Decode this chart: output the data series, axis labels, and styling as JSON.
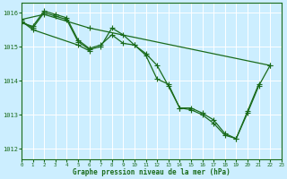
{
  "bg_color": "#cceeff",
  "grid_color": "#ffffff",
  "line_color": "#1a6b1a",
  "xlabel": "Graphe pression niveau de la mer (hPa)",
  "xlim": [
    0,
    23
  ],
  "ylim": [
    1011.7,
    1016.3
  ],
  "yticks": [
    1012,
    1013,
    1014,
    1015,
    1016
  ],
  "xticks": [
    0,
    1,
    2,
    3,
    4,
    5,
    6,
    7,
    8,
    9,
    10,
    11,
    12,
    13,
    14,
    15,
    16,
    17,
    18,
    19,
    20,
    21,
    22,
    23
  ],
  "lines": [
    {
      "x": [
        0,
        2,
        6,
        22
      ],
      "y": [
        1015.8,
        1015.95,
        1015.55,
        1014.45
      ]
    },
    {
      "x": [
        0,
        1,
        2,
        3,
        4,
        5,
        6,
        7,
        8,
        9,
        10,
        11,
        12,
        13,
        14,
        15,
        16,
        17,
        18,
        19,
        20,
        21
      ],
      "y": [
        1015.7,
        1015.6,
        1016.05,
        1015.95,
        1015.85,
        1015.2,
        1014.95,
        1015.05,
        1015.35,
        1015.1,
        1015.05,
        1014.8,
        1014.45,
        1013.85,
        1013.2,
        1013.2,
        1013.05,
        1012.85,
        1012.45,
        1012.3,
        1013.1,
        1013.9
      ]
    },
    {
      "x": [
        0,
        1,
        2,
        3,
        4,
        5,
        6,
        7,
        8,
        9,
        10,
        11,
        12,
        13,
        14,
        15,
        16,
        17,
        18,
        19,
        20,
        21,
        22
      ],
      "y": [
        1015.75,
        1015.55,
        1016.0,
        1015.9,
        1015.8,
        1015.15,
        1014.92,
        1015.0,
        1015.55,
        1015.35,
        1015.05,
        1014.75,
        1014.05,
        1013.9,
        1013.2,
        1013.15,
        1013.0,
        1012.75,
        1012.4,
        1012.3,
        1013.05,
        1013.85,
        1014.45
      ]
    },
    {
      "x": [
        0,
        1,
        5,
        6
      ],
      "y": [
        1015.75,
        1015.5,
        1015.05,
        1014.88
      ]
    }
  ]
}
